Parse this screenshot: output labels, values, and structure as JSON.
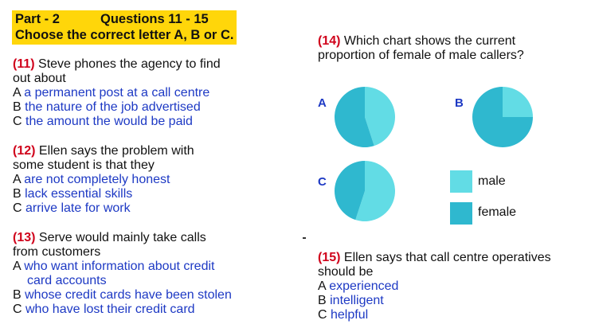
{
  "header": {
    "part": "Part - 2",
    "questions": "Questions 11 - 15",
    "instruction": "Choose the correct letter A, B or C."
  },
  "q11": {
    "num": "(11)",
    "stem_line1": " Steve phones the agency to find",
    "stem_line2": "out about",
    "options": [
      {
        "letter": "A ",
        "text": "a permanent post at a call centre"
      },
      {
        "letter": "B ",
        "text": "the nature of the job advertised"
      },
      {
        "letter": "C ",
        "text": "the amount the would be paid"
      }
    ]
  },
  "q12": {
    "num": "(12)",
    "stem_line1": " Ellen says the problem with",
    "stem_line2": "some student is that they",
    "options": [
      {
        "letter": "A ",
        "text": "are not completely honest"
      },
      {
        "letter": "B ",
        "text": "lack essential skills"
      },
      {
        "letter": "C ",
        "text": "arrive late for work"
      }
    ]
  },
  "q13": {
    "num": "(13)",
    "stem_line1": " Serve would mainly take calls",
    "stem_line2": "from customers",
    "options": [
      {
        "letter": "A ",
        "text": "who want information about credit",
        "text2": "card accounts"
      },
      {
        "letter": "B ",
        "text": "whose credit cards have been stolen"
      },
      {
        "letter": "C ",
        "text": "who have lost their credit card"
      }
    ]
  },
  "q14": {
    "num": "(14)",
    "stem_line1": " Which chart shows the current",
    "stem_line2": "proportion of female of male callers?"
  },
  "q15": {
    "num": "(15)",
    "stem_line1": " Ellen says that call centre operatives",
    "stem_line2": "should be",
    "options": [
      {
        "letter": "A ",
        "text": "experienced"
      },
      {
        "letter": "B ",
        "text": "intelligent"
      },
      {
        "letter": "C ",
        "text": "helpful"
      }
    ]
  },
  "chart_data": [
    {
      "type": "pie",
      "option": "A",
      "categories": [
        "male",
        "female"
      ],
      "values": [
        45,
        55
      ],
      "colors": [
        "#62dce5",
        "#2fb8cf"
      ]
    },
    {
      "type": "pie",
      "option": "B",
      "categories": [
        "male",
        "female"
      ],
      "values": [
        25,
        75
      ],
      "colors": [
        "#62dce5",
        "#2fb8cf"
      ]
    },
    {
      "type": "pie",
      "option": "C",
      "categories": [
        "male",
        "female"
      ],
      "values": [
        55,
        45
      ],
      "colors": [
        "#62dce5",
        "#2fb8cf"
      ]
    }
  ],
  "legend": [
    {
      "label": "male",
      "color": "#62dce5"
    },
    {
      "label": "female",
      "color": "#2fb8cf"
    }
  ]
}
